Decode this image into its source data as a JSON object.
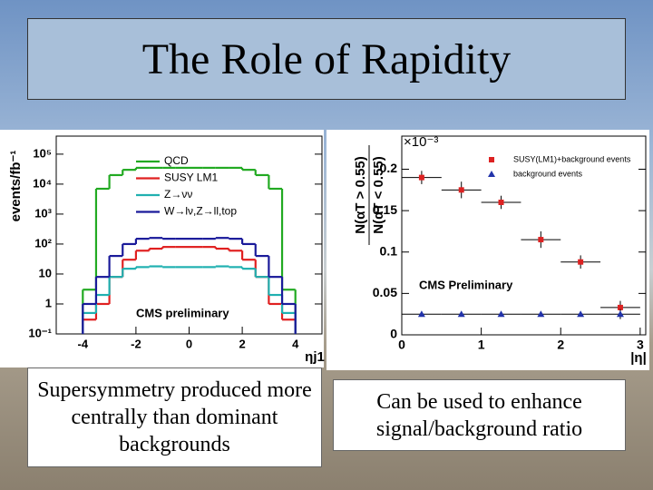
{
  "slide": {
    "title": "The Role of Rapidity",
    "captions": [
      "Supersymmetry produced more centrally than dominant backgrounds",
      "Can be used to enhance signal/background ratio"
    ]
  },
  "chart_data": [
    {
      "type": "histogram",
      "ylabel": "events/fb⁻¹",
      "xlabel": "ηj1",
      "annotation": "CMS preliminary",
      "log_y": true,
      "xlim": [
        -5,
        5
      ],
      "ylim": [
        0.1,
        400000
      ],
      "xticks": [
        -4,
        -2,
        0,
        2,
        4
      ],
      "yticks": [
        {
          "value": 0.1,
          "label": "10⁻¹"
        },
        1,
        10,
        {
          "value": 100,
          "label": "10²"
        },
        {
          "value": 1000,
          "label": "10³"
        },
        {
          "value": 10000,
          "label": "10⁴"
        },
        {
          "value": 100000,
          "label": "10⁵"
        }
      ],
      "bins": [
        -4,
        -3.5,
        -3,
        -2.5,
        -2,
        -1.5,
        -1,
        -0.5,
        0,
        0.5,
        1,
        1.5,
        2,
        2.5,
        3,
        3.5,
        4
      ],
      "series": [
        {
          "name": "QCD",
          "color": "#22aa22",
          "values": [
            3,
            7000,
            20000,
            30000,
            35000,
            35000,
            35000,
            35000,
            35000,
            35000,
            35000,
            35000,
            30000,
            20000,
            7000,
            3
          ]
        },
        {
          "name": "SUSY LM1",
          "color": "#e02020",
          "values": [
            0.3,
            1,
            8,
            30,
            60,
            70,
            80,
            80,
            80,
            80,
            70,
            60,
            30,
            8,
            1,
            0.3
          ]
        },
        {
          "name": "Z→νν",
          "color": "#20b0b0",
          "values": [
            0.5,
            2,
            8,
            15,
            17,
            18,
            17,
            17,
            17,
            17,
            18,
            17,
            15,
            8,
            2,
            0.5
          ]
        },
        {
          "name": "W→lν,Z→ll,top",
          "color": "#1a1a9a",
          "values": [
            1,
            8,
            40,
            100,
            150,
            160,
            150,
            150,
            150,
            150,
            160,
            150,
            100,
            40,
            8,
            1
          ]
        }
      ]
    },
    {
      "type": "scatter",
      "ylabel_numerator": "N(αT > 0.55)",
      "ylabel_denominator": "N(αT < 0.55)",
      "xlabel": "|η|",
      "multiplier": "×10⁻³",
      "annotation": "CMS Preliminary",
      "xlim": [
        0,
        3.07
      ],
      "ylim": [
        0,
        0.24
      ],
      "xticks": [
        0,
        1,
        2,
        3
      ],
      "yticks": [
        0,
        0.05,
        0.1,
        0.15,
        0.2
      ],
      "series": [
        {
          "name": "SUSY(LM1)+background events",
          "color": "#dd2222",
          "marker": "square",
          "x": [
            0.25,
            0.75,
            1.25,
            1.75,
            2.25,
            2.75
          ],
          "values": [
            0.19,
            0.175,
            0.16,
            0.115,
            0.088,
            0.033
          ],
          "xerr": [
            0.25,
            0.25,
            0.25,
            0.25,
            0.25,
            0.25
          ],
          "yerr": [
            0.008,
            0.01,
            0.008,
            0.01,
            0.008,
            0.008
          ]
        },
        {
          "name": "background events",
          "color": "#2233aa",
          "marker": "triangle",
          "x": [
            0.25,
            0.75,
            1.25,
            1.75,
            2.25,
            2.75
          ],
          "values": [
            0.025,
            0.025,
            0.025,
            0.025,
            0.025,
            0.025
          ],
          "xerr": [
            0.25,
            0.25,
            0.25,
            0.25,
            0.25,
            0.25
          ],
          "yerr": [
            0.002,
            0.002,
            0.002,
            0.002,
            0.002,
            0.006
          ]
        }
      ]
    }
  ]
}
